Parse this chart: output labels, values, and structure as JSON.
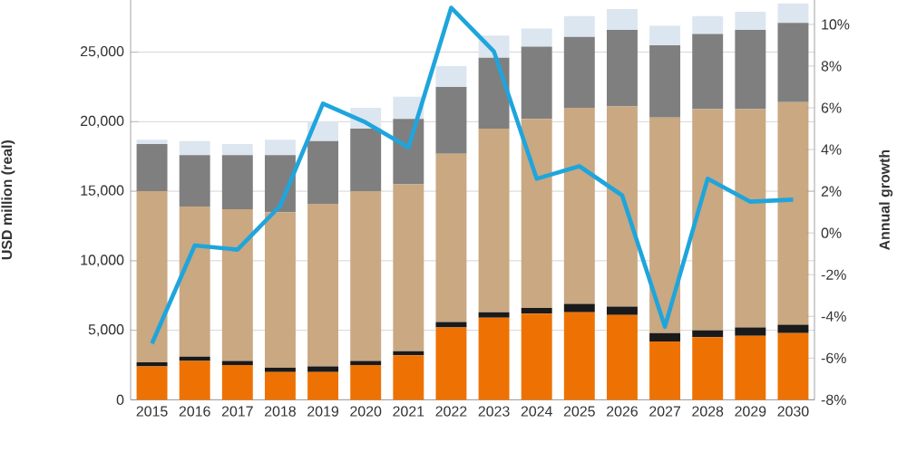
{
  "chart_data": {
    "type": "bar",
    "stacked": true,
    "grid": "y",
    "ylabel": "USD million (real)",
    "y2label": "Annual growth",
    "categories": [
      "2015",
      "2016",
      "2017",
      "2018",
      "2019",
      "2020",
      "2021",
      "2022",
      "2023",
      "2024",
      "2025",
      "2026",
      "2027",
      "2028",
      "2029",
      "2030"
    ],
    "ylim": [
      0,
      28750
    ],
    "yticks": [
      {
        "value": 0,
        "label": "0"
      },
      {
        "value": 5000,
        "label": "5,000"
      },
      {
        "value": 10000,
        "label": "10,000"
      },
      {
        "value": 15000,
        "label": "15,000"
      },
      {
        "value": 20000,
        "label": "20,000"
      },
      {
        "value": 25000,
        "label": "25,000"
      }
    ],
    "y2lim": [
      -8,
      11.17
    ],
    "y2ticks": [
      {
        "value": -8,
        "label": "-8%"
      },
      {
        "value": -6,
        "label": "-6%"
      },
      {
        "value": -4,
        "label": "-4%"
      },
      {
        "value": -2,
        "label": "-2%"
      },
      {
        "value": 0,
        "label": "0%"
      },
      {
        "value": 2,
        "label": "2%"
      },
      {
        "value": 4,
        "label": "4%"
      },
      {
        "value": 6,
        "label": "6%"
      },
      {
        "value": 8,
        "label": "8%"
      },
      {
        "value": 10,
        "label": "10%"
      }
    ],
    "series": [
      {
        "color": "#ee7203",
        "values": [
          2400,
          2800,
          2500,
          2000,
          2000,
          2500,
          3200,
          5200,
          5900,
          6200,
          6300,
          6100,
          4200,
          4500,
          4600,
          4800
        ]
      },
      {
        "color": "#1a1a1a",
        "values": [
          300,
          300,
          300,
          300,
          400,
          300,
          300,
          400,
          400,
          400,
          600,
          600,
          600,
          500,
          600,
          600
        ]
      },
      {
        "color": "#c9a882",
        "values": [
          12300,
          10800,
          10900,
          11200,
          11700,
          12200,
          12000,
          12100,
          13200,
          13600,
          14100,
          14400,
          15500,
          15900,
          15700,
          16000
        ]
      },
      {
        "color": "#7f7f7f",
        "values": [
          3400,
          3700,
          3900,
          4100,
          4500,
          4500,
          4700,
          4800,
          5100,
          5200,
          5100,
          5500,
          5200,
          5400,
          5700,
          5700
        ]
      },
      {
        "color": "#dce6f0",
        "values": [
          300,
          1000,
          800,
          1100,
          1400,
          1500,
          1600,
          1500,
          1600,
          1300,
          1500,
          1500,
          1400,
          1300,
          1300,
          1400
        ]
      },
      {
        "type": "line",
        "axis": "y2",
        "color": "#1fa5dc",
        "values": [
          -5.3,
          -0.6,
          -0.8,
          1.3,
          6.2,
          5.3,
          4.1,
          10.8,
          8.7,
          2.6,
          3.2,
          1.8,
          -4.5,
          2.6,
          1.5,
          1.6
        ]
      }
    ]
  }
}
